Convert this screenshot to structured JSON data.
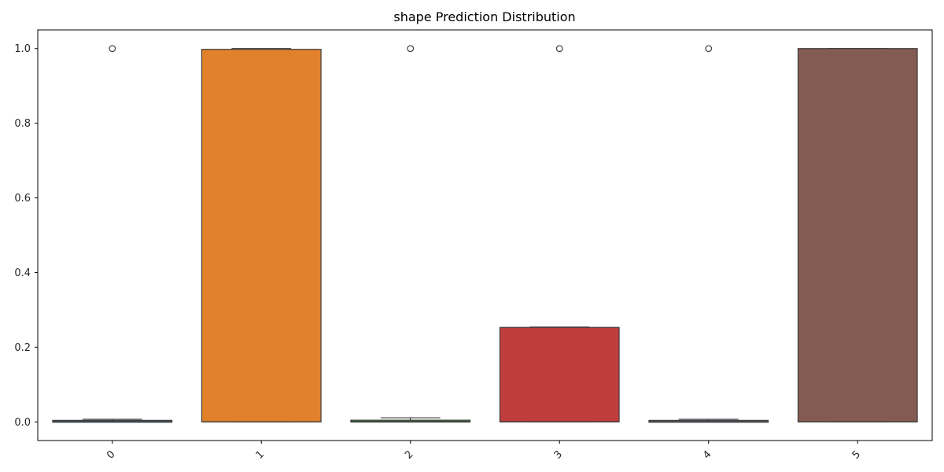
{
  "chart_data": {
    "type": "box",
    "title": "shape Prediction Distribution",
    "xlabel": "",
    "ylabel": "",
    "categories": [
      "0",
      "1",
      "2",
      "3",
      "4",
      "5"
    ],
    "ylim": [
      -0.05,
      1.05
    ],
    "yticks": [
      0.0,
      0.2,
      0.4,
      0.6,
      0.8,
      1.0
    ],
    "ytick_labels": [
      "0.0",
      "0.2",
      "0.4",
      "0.6",
      "0.8",
      "1.0"
    ],
    "grid": false,
    "xtick_rotation": 45,
    "boxes": [
      {
        "category": "0",
        "color": "#3b75af",
        "whisker_low": 0.0,
        "q1": 0.0,
        "median": 0.001,
        "q3": 0.003,
        "whisker_high": 0.007,
        "outliers": [
          1.0
        ]
      },
      {
        "category": "1",
        "color": "#e1812c",
        "whisker_low": 0.0,
        "q1": 0.0,
        "median": 0.0,
        "q3": 0.998,
        "whisker_high": 1.0,
        "outliers": []
      },
      {
        "category": "2",
        "color": "#3a923a",
        "whisker_low": 0.0,
        "q1": 0.0,
        "median": 0.001,
        "q3": 0.004,
        "whisker_high": 0.011,
        "outliers": [
          1.0
        ]
      },
      {
        "category": "3",
        "color": "#c03d3e",
        "whisker_low": 0.0,
        "q1": 0.0,
        "median": 0.0,
        "q3": 0.253,
        "whisker_high": 0.254,
        "outliers": [
          1.0
        ]
      },
      {
        "category": "4",
        "color": "#9372b2",
        "whisker_low": 0.0,
        "q1": 0.0,
        "median": 0.001,
        "q3": 0.003,
        "whisker_high": 0.007,
        "outliers": [
          1.0
        ]
      },
      {
        "category": "5",
        "color": "#845b53",
        "whisker_low": 0.0,
        "q1": 0.0,
        "median": 0.0,
        "q3": 1.0,
        "whisker_high": 1.0,
        "outliers": []
      }
    ]
  }
}
